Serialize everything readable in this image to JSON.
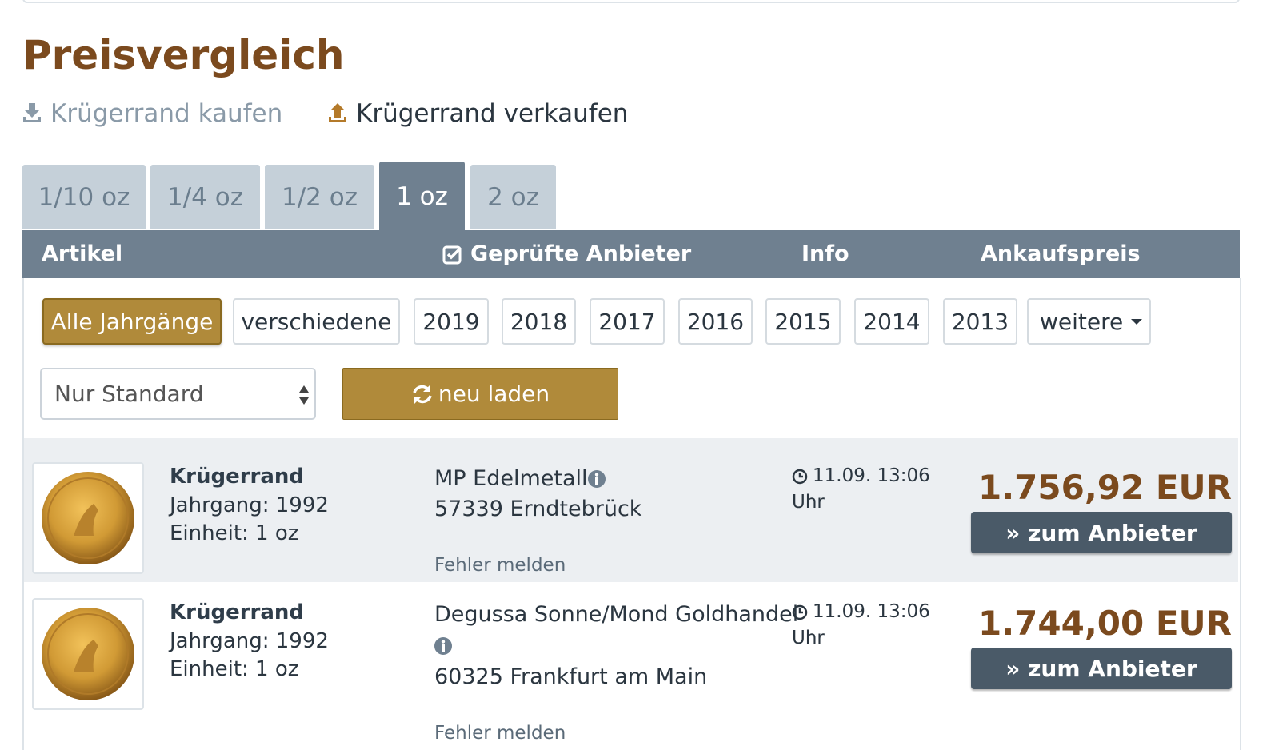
{
  "title": "Preisvergleich",
  "mode_links": [
    "Krügerrand kaufen",
    "Krügerrand verkaufen"
  ],
  "tabs": [
    "1/10 oz",
    "1/4 oz",
    "1/2 oz",
    "1 oz",
    "2 oz"
  ],
  "table_headers": [
    "Artikel",
    "Geprüfte Anbieter",
    "Info",
    "Ankaufspreis"
  ],
  "year_filters": [
    "Alle Jahrgänge",
    "verschiedene",
    "2019",
    "2018",
    "2017",
    "2016",
    "2015",
    "2014",
    "2013",
    "weitere"
  ],
  "select": "Nur Standard",
  "reload_button": "neu laden",
  "rows": [
    {
      "name": "Krügerrand",
      "year": "Jahrgang: 1992",
      "unit": "Einheit: 1 oz",
      "dealer": "MP Edelmetalle",
      "location": "57339 Erndtebrück",
      "report": "Fehler melden",
      "date": "11.09. 13:06",
      "time_unit": "Uhr",
      "price": "1.756,92 EUR",
      "button": "» zum Anbieter"
    },
    {
      "name": "Krügerrand",
      "year": "Jahrgang: 1992",
      "unit": "Einheit: 1 oz",
      "dealer": "Degussa Sonne/Mond Goldhandel",
      "location": "60325 Frankfurt am Main",
      "report": "Fehler melden",
      "date": "11.09. 13:06",
      "time_unit": "Uhr",
      "price": "1.744,00 EUR",
      "button": "» zum Anbieter"
    }
  ]
}
